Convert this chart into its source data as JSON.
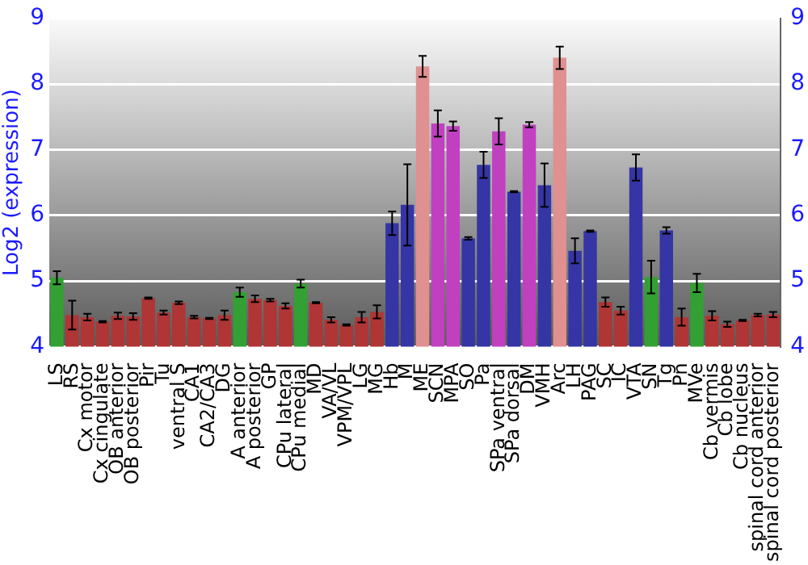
{
  "chart_data": {
    "type": "bar",
    "ylabel": "Log2 (expression)",
    "categories": [
      "LS",
      "RS",
      "Cx motor",
      "Cx cingulate",
      "OB anterior",
      "OB posterior",
      "Pir",
      "Tu",
      "ventral S",
      "CA1",
      "CA2/CA3",
      "DG",
      "A anterior",
      "A posterior",
      "GP",
      "CPu lateral",
      "CPu medial",
      "MD",
      "VA/VL",
      "VPM/VPL",
      "LG",
      "MG",
      "Hb",
      "M",
      "ME",
      "SCN",
      "MPA",
      "SO",
      "Pa",
      "SPa ventral",
      "SPa dorsal",
      "DM",
      "VMH",
      "Arc",
      "LH",
      "PAG",
      "SC",
      "IC",
      "VTA",
      "SN",
      "Tg",
      "Pn",
      "MVe",
      "Cb vermis",
      "Cb lobe",
      "Cb nucleus",
      "spinal cord anterior",
      "spinal cord posterior"
    ],
    "values": [
      5.05,
      4.48,
      4.45,
      4.38,
      4.47,
      4.46,
      4.74,
      4.52,
      4.67,
      4.45,
      4.43,
      4.48,
      4.83,
      4.73,
      4.71,
      4.62,
      4.96,
      4.67,
      4.41,
      4.33,
      4.45,
      4.53,
      5.88,
      6.16,
      8.27,
      7.4,
      7.36,
      5.65,
      6.77,
      7.28,
      6.36,
      7.38,
      6.46,
      8.4,
      5.46,
      5.76,
      4.68,
      4.55,
      6.73,
      5.06,
      5.77,
      4.45,
      4.97,
      4.47,
      4.34,
      4.4,
      4.48,
      4.49
    ],
    "errors": [
      0.1,
      0.22,
      0.05,
      0.01,
      0.05,
      0.05,
      0.01,
      0.03,
      0.02,
      0.02,
      0.01,
      0.07,
      0.07,
      0.05,
      0.02,
      0.04,
      0.06,
      0.01,
      0.04,
      0.01,
      0.08,
      0.1,
      0.18,
      0.62,
      0.16,
      0.2,
      0.07,
      0.02,
      0.2,
      0.2,
      0.01,
      0.04,
      0.33,
      0.17,
      0.19,
      0.01,
      0.07,
      0.06,
      0.2,
      0.25,
      0.05,
      0.13,
      0.14,
      0.07,
      0.04,
      0.01,
      0.02,
      0.04
    ],
    "colors": [
      "#33a033",
      "#b03535",
      "#b03535",
      "#b03535",
      "#b03535",
      "#b03535",
      "#b03535",
      "#b03535",
      "#b03535",
      "#b03535",
      "#b03535",
      "#b03535",
      "#33a033",
      "#b03535",
      "#b03535",
      "#b03535",
      "#33a033",
      "#b03535",
      "#b03535",
      "#b03535",
      "#b03535",
      "#b03535",
      "#3535a5",
      "#3535a5",
      "#e09090",
      "#c040c0",
      "#c040c0",
      "#3535a5",
      "#3535a5",
      "#c040c0",
      "#3535a5",
      "#c040c0",
      "#3535a5",
      "#e09090",
      "#3535a5",
      "#3535a5",
      "#b03535",
      "#b03535",
      "#3535a5",
      "#33a033",
      "#3535a5",
      "#b03535",
      "#33a033",
      "#b03535",
      "#b03535",
      "#b03535",
      "#b03535",
      "#b03535"
    ],
    "ylim": [
      4,
      9
    ],
    "yticks": [
      4,
      5,
      6,
      7,
      8,
      9
    ],
    "y2lim": [
      4,
      9
    ],
    "y2ticks": [
      4,
      5,
      6,
      7,
      8,
      9
    ],
    "grid": "y",
    "legend": false
  }
}
